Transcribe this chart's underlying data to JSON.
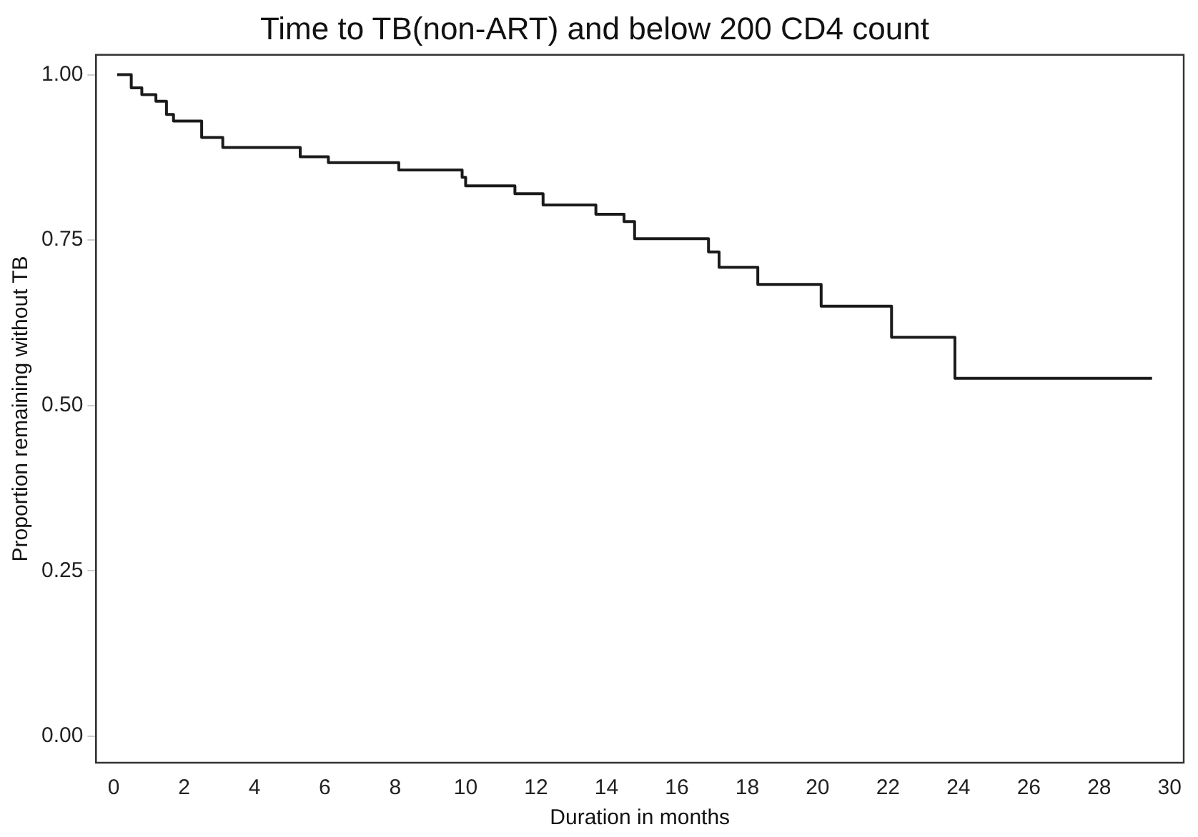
{
  "chart_data": {
    "type": "step",
    "title": "Time to TB(non-ART) and below 200 CD4 count",
    "xlabel": "Duration in months",
    "ylabel": "Proportion remaining without TB",
    "series": [
      {
        "color": "#1a1a1a",
        "x": [
          0.1,
          0.5,
          0.8,
          1.2,
          1.5,
          1.7,
          2.5,
          3.1,
          5.3,
          6.1,
          8.1,
          9.9,
          10.0,
          11.4,
          12.2,
          13.7,
          14.5,
          14.8,
          16.9,
          17.2,
          18.3,
          20.1,
          22.1,
          23.9,
          29.5
        ],
        "values": [
          1.0,
          0.98,
          0.97,
          0.96,
          0.94,
          0.93,
          0.905,
          0.89,
          0.876,
          0.867,
          0.856,
          0.845,
          0.832,
          0.82,
          0.803,
          0.789,
          0.778,
          0.752,
          0.732,
          0.709,
          0.683,
          0.65,
          0.603,
          0.541,
          0.541
        ]
      }
    ],
    "xlim": [
      -0.5,
      30.4
    ],
    "xticks": [
      0,
      2,
      4,
      6,
      8,
      10,
      12,
      14,
      16,
      18,
      20,
      22,
      24,
      26,
      28,
      30
    ],
    "ylim": [
      -0.04,
      1.03
    ],
    "yticks": [
      {
        "value": 0,
        "label": "0.00"
      },
      {
        "value": 0.25,
        "label": "0.25"
      },
      {
        "value": 0.5,
        "label": "0.50"
      },
      {
        "value": 0.75,
        "label": "0.75"
      },
      {
        "value": 1,
        "label": "1.00"
      }
    ],
    "grid": false,
    "legend": false,
    "marker": "none",
    "line_style": "solid"
  }
}
